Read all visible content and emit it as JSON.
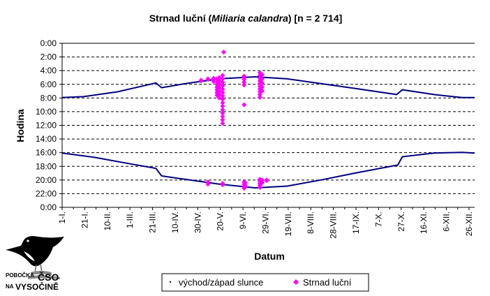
{
  "chart_data": {
    "type": "scatter",
    "title_plain": "Strnad luční (",
    "title_italic": "Miliaria calandra",
    "title_rest": ") [n = 2 714]",
    "xlabel": "Datum",
    "ylabel": "Hodina",
    "x_categories": [
      "1-I.",
      "21-I.",
      "10-II.",
      "1-III.",
      "21-III.",
      "10-IV.",
      "30-IV.",
      "20-V.",
      "9-VI.",
      "29-VI.",
      "19-VII.",
      "8-VIII.",
      "28-VIII.",
      "17-IX.",
      "7-X.",
      "27-X.",
      "16-XI.",
      "6-XII.",
      "26-XII."
    ],
    "x_unit": "day of year",
    "xlim": [
      1,
      366
    ],
    "y_ticks": [
      "0:00",
      "2:00",
      "4:00",
      "6:00",
      "8:00",
      "10:00",
      "12:00",
      "14:00",
      "16:00",
      "18:00",
      "20:00",
      "22:00",
      "0:00"
    ],
    "ylim": [
      0,
      24
    ],
    "y_reversed": true,
    "grid": "horizontal dashed",
    "legend": "bottom-center",
    "series": [
      {
        "name": "východ/západ slunce",
        "color": "#000080",
        "style": "line",
        "sunset": [
          [
            1,
            16.05
          ],
          [
            30,
            16.7
          ],
          [
            60,
            17.6
          ],
          [
            84,
            18.3
          ],
          [
            89,
            19.4
          ],
          [
            110,
            19.9
          ],
          [
            140,
            20.6
          ],
          [
            172,
            21.15
          ],
          [
            200,
            20.9
          ],
          [
            230,
            20.0
          ],
          [
            260,
            19.0
          ],
          [
            298,
            17.8
          ],
          [
            302,
            16.6
          ],
          [
            330,
            16.05
          ],
          [
            355,
            15.95
          ],
          [
            366,
            16.05
          ]
        ],
        "sunrise": [
          [
            1,
            7.95
          ],
          [
            20,
            7.8
          ],
          [
            50,
            7.1
          ],
          [
            84,
            5.8
          ],
          [
            89,
            6.5
          ],
          [
            110,
            5.9
          ],
          [
            140,
            5.2
          ],
          [
            172,
            4.9
          ],
          [
            200,
            5.2
          ],
          [
            230,
            5.9
          ],
          [
            260,
            6.6
          ],
          [
            297,
            7.5
          ],
          [
            302,
            6.8
          ],
          [
            330,
            7.5
          ],
          [
            355,
            7.95
          ],
          [
            366,
            7.95
          ]
        ]
      },
      {
        "name": "Strnad luční",
        "color": "#ff00ff",
        "style": "markers",
        "clusters": [
          {
            "x": 124,
            "y": [
              5.4,
              5.5
            ]
          },
          {
            "x": 130,
            "y": [
              5.2,
              5.3,
              20.3,
              20.6
            ]
          },
          {
            "x": 135,
            "y": [
              5.1,
              5.3,
              5.6
            ]
          },
          {
            "x": 138,
            "y": [
              5.2,
              5.6,
              6.0,
              6.4,
              6.8,
              7.2,
              7.6
            ]
          },
          {
            "x": 140,
            "y": [
              5.0,
              5.5,
              6.0,
              6.5,
              7.0,
              7.5,
              8.0
            ]
          },
          {
            "x": 143,
            "y": [
              4.7,
              5.2,
              5.7,
              6.2,
              6.7,
              7.2,
              7.7,
              8.2,
              8.7,
              9.2,
              9.7,
              10.2,
              10.7,
              11.2,
              11.7,
              20.5,
              20.7
            ]
          },
          {
            "x": 144,
            "y": [
              1.3
            ]
          },
          {
            "x": 162,
            "y": [
              4.8,
              5.0,
              5.3,
              5.7,
              6.1,
              9.0,
              20.3,
              20.6,
              20.9,
              21.2
            ]
          },
          {
            "x": 163,
            "y": [
              20.4,
              20.8,
              21.0
            ]
          },
          {
            "x": 176,
            "y": [
              4.3,
              4.7,
              5.1,
              5.5,
              5.9,
              6.3,
              6.7,
              7.1,
              7.5,
              7.9,
              19.9,
              20.2,
              20.5,
              20.8,
              21.1
            ]
          },
          {
            "x": 178,
            "y": [
              4.6,
              5.2,
              5.8,
              6.4,
              7.0,
              20.0,
              20.4
            ]
          },
          {
            "x": 182,
            "y": [
              20.0,
              20.1
            ]
          }
        ]
      }
    ]
  },
  "logo": {
    "line1": "POBOČKA",
    "big": "ČSO",
    "line2": "NA",
    "big2": "VYSOČINĚ"
  }
}
